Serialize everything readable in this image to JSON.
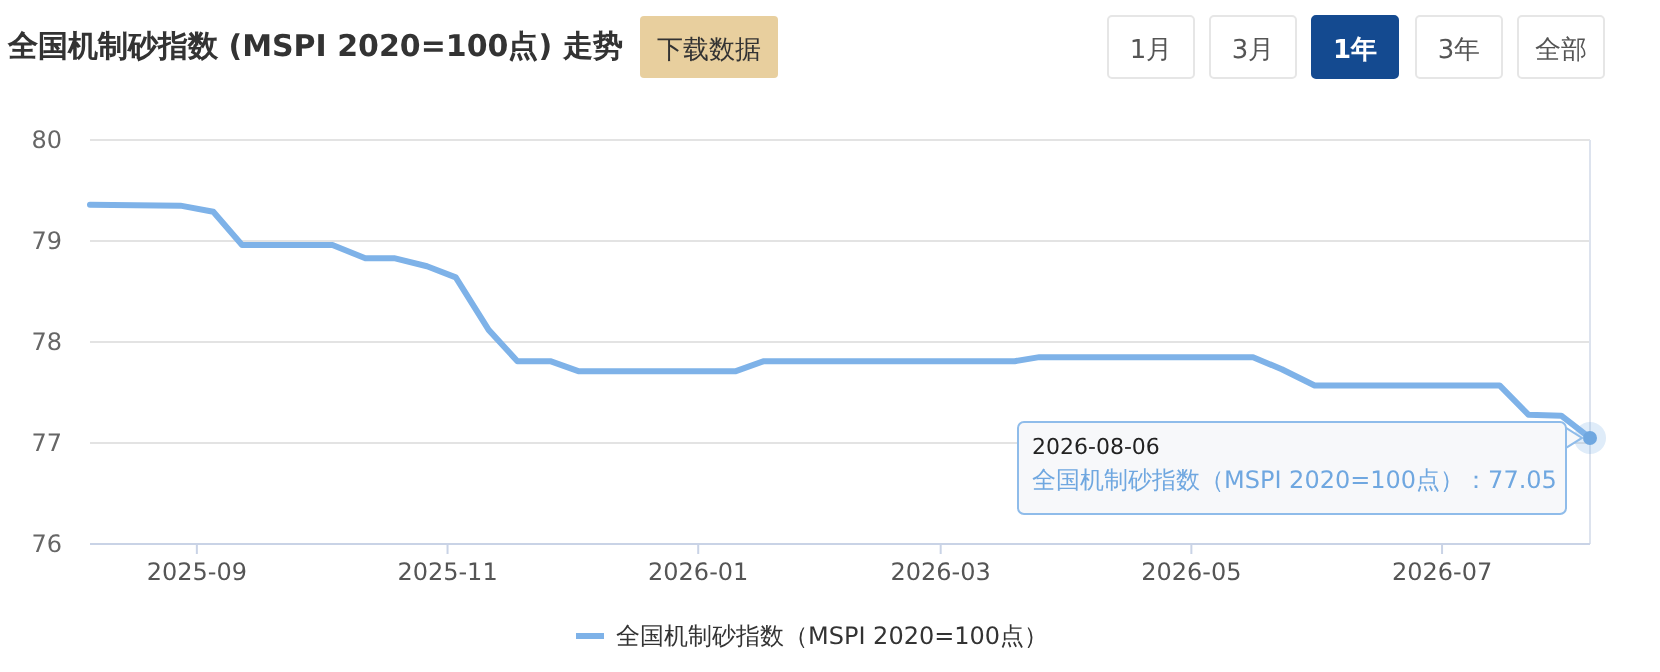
{
  "chart_data": {
    "type": "line",
    "title": "全国机制砂指数 (MSPI 2020=100点) 走势",
    "x": [
      "2025-08-06",
      "2025-08-28",
      "2025-09-05",
      "2025-09-12",
      "2025-10-04",
      "2025-10-12",
      "2025-10-19",
      "2025-10-27",
      "2025-11-03",
      "2025-11-11",
      "2025-11-18",
      "2025-11-26",
      "2025-12-03",
      "2026-01-10",
      "2026-01-17",
      "2026-03-19",
      "2026-03-25",
      "2026-05-16",
      "2026-05-23",
      "2026-05-31",
      "2026-07-15",
      "2026-07-22",
      "2026-07-30",
      "2026-08-06"
    ],
    "series": [
      {
        "name": "全国机制砂指数（MSPI 2020=100点）",
        "color": "#7eb2e8",
        "values": [
          79.36,
          79.35,
          79.29,
          78.96,
          78.96,
          78.83,
          78.83,
          78.75,
          78.64,
          78.12,
          77.81,
          77.81,
          77.71,
          77.71,
          77.81,
          77.81,
          77.85,
          77.85,
          77.73,
          77.57,
          77.57,
          77.28,
          77.27,
          77.05
        ]
      }
    ],
    "xlim": [
      "2025-08-06",
      "2026-08-06"
    ],
    "xticks": [
      "2025-09",
      "2025-11",
      "2026-01",
      "2026-03",
      "2026-05",
      "2026-07"
    ],
    "ylim": [
      76,
      80
    ],
    "yticks": [
      76,
      77,
      78,
      79,
      80
    ],
    "grid": "y",
    "legend": "bottom",
    "marker": "none",
    "line_style": "solid",
    "annotations": [
      "下载数据",
      "1月",
      "3月",
      "1年",
      "3年",
      "全部",
      "2026-08-06",
      {
        "text": "全国机制砂指数（MSPI 2020=100点）：77.05",
        "x": "2026-08-06",
        "y": 77.05
      }
    ]
  }
}
